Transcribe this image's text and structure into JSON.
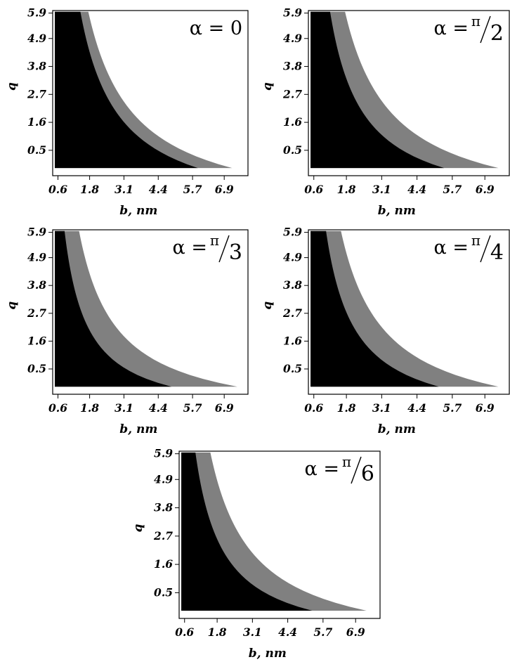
{
  "chart_data": [
    {
      "type": "heatmap",
      "title": "α = 0",
      "alpha_label": {
        "symbol": "α",
        "eq": "=",
        "value": "0"
      },
      "xlabel": "b,  nm",
      "ylabel": "q",
      "x_ticks": [
        "0.6",
        "1.8",
        "3.1",
        "4.4",
        "5.7",
        "6.9"
      ],
      "y_ticks": [
        "5.9",
        "4.9",
        "3.8",
        "2.7",
        "1.6",
        "0.5"
      ],
      "xlim": [
        0.4,
        7.8
      ],
      "ylim": [
        -0.5,
        6.0
      ],
      "regions": {
        "black_boundary_b_at_q_max": 1.45,
        "gray_extent_b_max": 7.2,
        "black_extent_b_max": 5.9
      },
      "colors": {
        "black": "#000000",
        "gray": "#808080"
      }
    },
    {
      "type": "heatmap",
      "title": "α = π/2",
      "alpha_label": {
        "symbol": "α",
        "eq": "=",
        "num": "π",
        "den": "2"
      },
      "xlabel": "b,  nm",
      "ylabel": "q",
      "x_ticks": [
        "0.6",
        "1.8",
        "3.1",
        "4.4",
        "5.7",
        "6.9"
      ],
      "y_ticks": [
        "5.9",
        "4.9",
        "3.8",
        "2.7",
        "1.6",
        "0.5"
      ],
      "xlim": [
        0.4,
        7.8
      ],
      "ylim": [
        -0.5,
        6.0
      ],
      "regions": {
        "black_boundary_b_at_q_max": 1.2,
        "gray_extent_b_max": 7.4,
        "black_extent_b_max": 5.4
      },
      "colors": {
        "black": "#000000",
        "gray": "#808080"
      }
    },
    {
      "type": "heatmap",
      "title": "α = π/3",
      "alpha_label": {
        "symbol": "α",
        "eq": "=",
        "num": "π",
        "den": "3"
      },
      "xlabel": "b,  nm",
      "ylabel": "q",
      "x_ticks": [
        "0.6",
        "1.8",
        "3.1",
        "4.4",
        "5.7",
        "6.9"
      ],
      "y_ticks": [
        "5.9",
        "4.9",
        "3.8",
        "2.7",
        "1.6",
        "0.5"
      ],
      "xlim": [
        0.4,
        7.8
      ],
      "ylim": [
        -0.5,
        6.0
      ],
      "regions": {
        "black_boundary_b_at_q_max": 0.85,
        "gray_extent_b_max": 7.4,
        "black_extent_b_max": 4.9
      },
      "colors": {
        "black": "#000000",
        "gray": "#808080"
      }
    },
    {
      "type": "heatmap",
      "title": "α = π/4",
      "alpha_label": {
        "symbol": "α",
        "eq": "=",
        "num": "π",
        "den": "4"
      },
      "xlabel": "b,  nm",
      "ylabel": "q",
      "x_ticks": [
        "0.6",
        "1.8",
        "3.1",
        "4.4",
        "5.7",
        "6.9"
      ],
      "y_ticks": [
        "5.9",
        "4.9",
        "3.8",
        "2.7",
        "1.6",
        "0.5"
      ],
      "xlim": [
        0.4,
        7.8
      ],
      "ylim": [
        -0.5,
        6.0
      ],
      "regions": {
        "black_boundary_b_at_q_max": 1.05,
        "gray_extent_b_max": 7.4,
        "black_extent_b_max": 5.2
      },
      "colors": {
        "black": "#000000",
        "gray": "#808080"
      }
    },
    {
      "type": "heatmap",
      "title": "α = π/6",
      "alpha_label": {
        "symbol": "α",
        "eq": "=",
        "num": "π",
        "den": "6"
      },
      "xlabel": "b,  nm",
      "ylabel": "q",
      "x_ticks": [
        "0.6",
        "1.8",
        "3.1",
        "4.4",
        "5.7",
        "6.9"
      ],
      "y_ticks": [
        "5.9",
        "4.9",
        "3.8",
        "2.7",
        "1.6",
        "0.5"
      ],
      "xlim": [
        0.4,
        7.8
      ],
      "ylim": [
        -0.5,
        6.0
      ],
      "regions": {
        "black_boundary_b_at_q_max": 1.0,
        "gray_extent_b_max": 7.3,
        "black_extent_b_max": 5.3
      },
      "colors": {
        "black": "#000000",
        "gray": "#808080"
      }
    }
  ]
}
